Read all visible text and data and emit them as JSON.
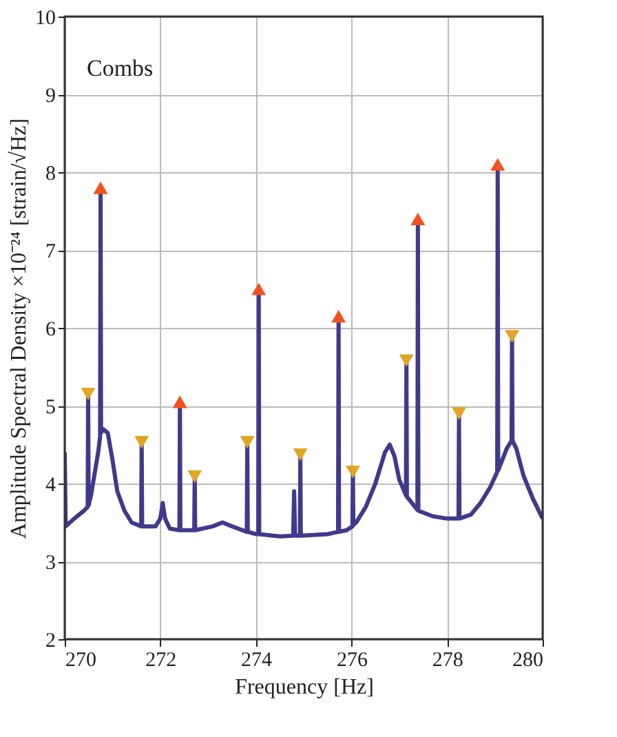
{
  "chart_data": {
    "type": "line",
    "xlabel": "Frequency [Hz]",
    "ylabel": "Amplitude Spectral Density ×10⁻²⁴ [strain/√Hz]",
    "annotations": [
      "Combs"
    ],
    "xlim": [
      270,
      280
    ],
    "xticks": [
      270,
      272,
      274,
      276,
      278,
      280
    ],
    "ylim": [
      2,
      10
    ],
    "yticks": [
      2,
      3,
      4,
      5,
      6,
      7,
      8,
      9,
      10
    ],
    "grid": true,
    "series": [
      {
        "color": "#40398c",
        "marker": "none",
        "line_style": "solid",
        "x": [
          270.0,
          270.02,
          270.2,
          270.4,
          270.48,
          270.49,
          270.5,
          270.55,
          270.7,
          270.74,
          270.75,
          270.76,
          270.8,
          270.9,
          271.0,
          271.1,
          271.25,
          271.4,
          271.6,
          271.61,
          271.62,
          271.9,
          272.0,
          272.05,
          272.1,
          272.2,
          272.4,
          272.41,
          272.42,
          272.71,
          272.72,
          272.73,
          273.1,
          273.3,
          273.5,
          273.81,
          273.82,
          273.83,
          274.0,
          274.05,
          274.06,
          274.07,
          274.5,
          274.78,
          274.8,
          274.82,
          274.92,
          274.93,
          274.94,
          275.5,
          275.72,
          275.73,
          275.74,
          275.9,
          276.02,
          276.03,
          276.04,
          276.1,
          276.3,
          276.5,
          276.7,
          276.8,
          276.9,
          277.0,
          277.14,
          277.15,
          277.16,
          277.2,
          277.38,
          277.39,
          277.4,
          277.7,
          278.0,
          278.24,
          278.25,
          278.26,
          278.5,
          278.7,
          278.9,
          279.05,
          279.06,
          279.07,
          279.25,
          279.35,
          279.36,
          279.37,
          279.45,
          279.6,
          279.8,
          280.0
        ],
        "values": [
          4.4,
          3.45,
          3.55,
          3.65,
          3.7,
          5.15,
          3.72,
          3.85,
          4.4,
          4.6,
          7.8,
          4.65,
          4.7,
          4.65,
          4.3,
          3.9,
          3.65,
          3.5,
          3.45,
          4.53,
          3.45,
          3.45,
          3.55,
          3.75,
          3.55,
          3.42,
          3.4,
          5.05,
          3.4,
          3.4,
          4.09,
          3.4,
          3.45,
          3.5,
          3.45,
          3.38,
          4.53,
          3.38,
          3.35,
          3.35,
          6.5,
          3.35,
          3.32,
          3.33,
          3.9,
          3.33,
          3.33,
          4.37,
          3.33,
          3.35,
          3.38,
          6.15,
          3.38,
          3.4,
          3.45,
          4.15,
          3.47,
          3.5,
          3.7,
          4.0,
          4.4,
          4.5,
          4.35,
          4.05,
          3.85,
          5.58,
          3.83,
          3.8,
          3.66,
          7.4,
          3.65,
          3.58,
          3.55,
          3.55,
          4.9,
          3.55,
          3.6,
          3.75,
          3.95,
          4.15,
          8.1,
          4.17,
          4.45,
          4.55,
          5.89,
          4.55,
          4.45,
          4.1,
          3.8,
          3.55
        ]
      },
      {
        "type": "scatter",
        "color": "#f4511e",
        "marker": "triangle",
        "x": [
          270.75,
          272.41,
          274.06,
          275.73,
          277.39,
          279.06
        ],
        "values": [
          7.8,
          5.05,
          6.5,
          6.15,
          7.4,
          8.1
        ]
      },
      {
        "type": "scatter",
        "color": "#e0a526",
        "marker": "triangle-down",
        "x": [
          270.49,
          271.61,
          272.72,
          273.82,
          274.93,
          276.03,
          277.15,
          278.25,
          279.36
        ],
        "values": [
          5.15,
          4.53,
          4.09,
          4.53,
          4.37,
          4.15,
          5.58,
          4.9,
          5.89
        ]
      }
    ]
  }
}
